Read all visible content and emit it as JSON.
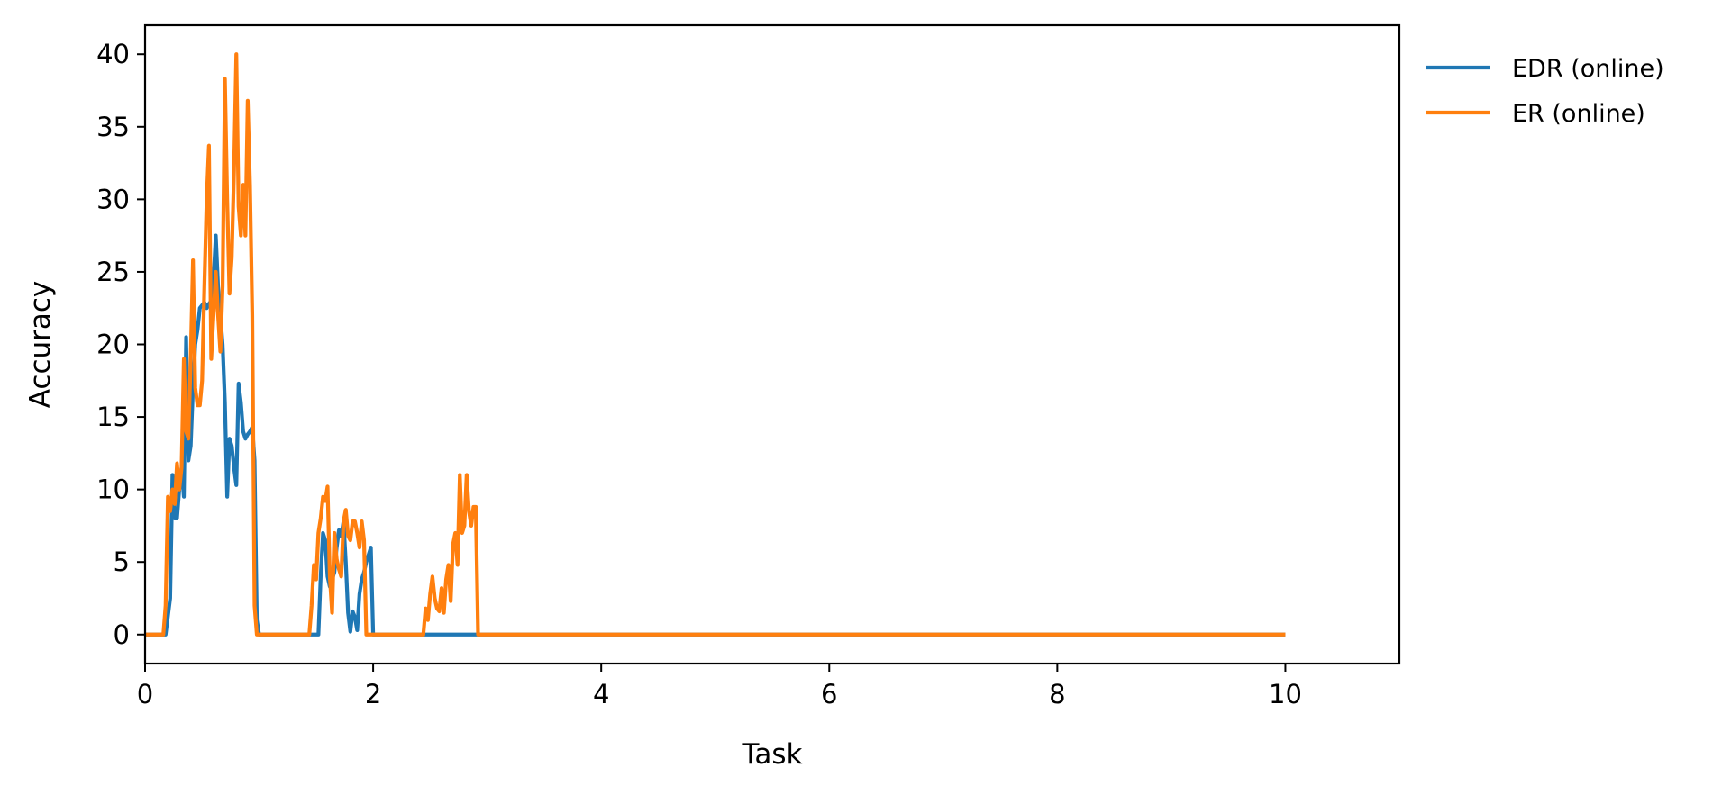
{
  "chart_data": {
    "type": "line",
    "title": "",
    "xlabel": "Task",
    "ylabel": "Accuracy",
    "xlim": [
      0,
      11
    ],
    "ylim": [
      -2,
      42
    ],
    "xticks": [
      0,
      2,
      4,
      6,
      8,
      10
    ],
    "yticks": [
      0,
      5,
      10,
      15,
      20,
      25,
      30,
      35,
      40
    ],
    "grid": false,
    "legend_position": "outside-top-right",
    "series": [
      {
        "name": "EDR (online)",
        "color": "#1f77b4",
        "points": [
          [
            0.0,
            0
          ],
          [
            0.18,
            0
          ],
          [
            0.22,
            2.5
          ],
          [
            0.24,
            11
          ],
          [
            0.26,
            8
          ],
          [
            0.28,
            8
          ],
          [
            0.3,
            10
          ],
          [
            0.32,
            11.5
          ],
          [
            0.34,
            9.5
          ],
          [
            0.36,
            20.5
          ],
          [
            0.38,
            12
          ],
          [
            0.4,
            13
          ],
          [
            0.42,
            17
          ],
          [
            0.44,
            20
          ],
          [
            0.46,
            21
          ],
          [
            0.48,
            22.5
          ],
          [
            0.5,
            22.7
          ],
          [
            0.52,
            22.9
          ],
          [
            0.54,
            22.5
          ],
          [
            0.56,
            22.8
          ],
          [
            0.58,
            23
          ],
          [
            0.6,
            24.5
          ],
          [
            0.62,
            27.5
          ],
          [
            0.64,
            24
          ],
          [
            0.66,
            22
          ],
          [
            0.68,
            20
          ],
          [
            0.7,
            16
          ],
          [
            0.72,
            9.5
          ],
          [
            0.74,
            13.5
          ],
          [
            0.76,
            13
          ],
          [
            0.78,
            11.5
          ],
          [
            0.8,
            10.3
          ],
          [
            0.82,
            17.3
          ],
          [
            0.84,
            16
          ],
          [
            0.86,
            14
          ],
          [
            0.88,
            13.5
          ],
          [
            0.9,
            13.8
          ],
          [
            0.92,
            14
          ],
          [
            0.94,
            14.3
          ],
          [
            0.96,
            12
          ],
          [
            0.98,
            1
          ],
          [
            1.0,
            0
          ],
          [
            1.48,
            0
          ],
          [
            1.52,
            0
          ],
          [
            1.54,
            4
          ],
          [
            1.56,
            7
          ],
          [
            1.58,
            6.5
          ],
          [
            1.6,
            4
          ],
          [
            1.62,
            3.3
          ],
          [
            1.64,
            3.8
          ],
          [
            1.66,
            4.3
          ],
          [
            1.68,
            6
          ],
          [
            1.7,
            7.2
          ],
          [
            1.72,
            6.8
          ],
          [
            1.74,
            7.8
          ],
          [
            1.76,
            5
          ],
          [
            1.78,
            1.5
          ],
          [
            1.8,
            0.2
          ],
          [
            1.82,
            1.6
          ],
          [
            1.84,
            1.2
          ],
          [
            1.86,
            0.3
          ],
          [
            1.88,
            2.8
          ],
          [
            1.9,
            3.8
          ],
          [
            1.92,
            4.3
          ],
          [
            1.94,
            5
          ],
          [
            1.96,
            5.5
          ],
          [
            1.98,
            6
          ],
          [
            2.0,
            0
          ],
          [
            2.46,
            0
          ],
          [
            3.0,
            0
          ],
          [
            10.0,
            0
          ]
        ]
      },
      {
        "name": "ER (online)",
        "color": "#ff7f0e",
        "points": [
          [
            0.0,
            0
          ],
          [
            0.16,
            0
          ],
          [
            0.18,
            2
          ],
          [
            0.2,
            9.5
          ],
          [
            0.22,
            8.5
          ],
          [
            0.24,
            10
          ],
          [
            0.26,
            9
          ],
          [
            0.28,
            11.8
          ],
          [
            0.3,
            10
          ],
          [
            0.32,
            11.5
          ],
          [
            0.34,
            19
          ],
          [
            0.36,
            14
          ],
          [
            0.38,
            13.5
          ],
          [
            0.4,
            19
          ],
          [
            0.42,
            25.8
          ],
          [
            0.44,
            17
          ],
          [
            0.46,
            15.8
          ],
          [
            0.48,
            15.8
          ],
          [
            0.5,
            17.5
          ],
          [
            0.52,
            24
          ],
          [
            0.54,
            30
          ],
          [
            0.56,
            33.7
          ],
          [
            0.58,
            19
          ],
          [
            0.6,
            22
          ],
          [
            0.62,
            25
          ],
          [
            0.64,
            22
          ],
          [
            0.66,
            19.5
          ],
          [
            0.68,
            24
          ],
          [
            0.7,
            38.3
          ],
          [
            0.72,
            30
          ],
          [
            0.74,
            23.5
          ],
          [
            0.76,
            26
          ],
          [
            0.78,
            32
          ],
          [
            0.8,
            40
          ],
          [
            0.82,
            29.5
          ],
          [
            0.84,
            27.5
          ],
          [
            0.86,
            31
          ],
          [
            0.88,
            27.5
          ],
          [
            0.9,
            36.8
          ],
          [
            0.92,
            31
          ],
          [
            0.94,
            22
          ],
          [
            0.96,
            2
          ],
          [
            0.98,
            0
          ],
          [
            1.0,
            0
          ],
          [
            1.44,
            0
          ],
          [
            1.46,
            2
          ],
          [
            1.48,
            4.8
          ],
          [
            1.5,
            3.8
          ],
          [
            1.52,
            7
          ],
          [
            1.54,
            8
          ],
          [
            1.56,
            9.5
          ],
          [
            1.58,
            9.2
          ],
          [
            1.6,
            10.2
          ],
          [
            1.62,
            4
          ],
          [
            1.64,
            1.5
          ],
          [
            1.66,
            7
          ],
          [
            1.68,
            5.2
          ],
          [
            1.7,
            4.5
          ],
          [
            1.72,
            4
          ],
          [
            1.74,
            7.8
          ],
          [
            1.76,
            8.6
          ],
          [
            1.78,
            6.8
          ],
          [
            1.8,
            6.5
          ],
          [
            1.82,
            7.8
          ],
          [
            1.84,
            7.8
          ],
          [
            1.86,
            7
          ],
          [
            1.88,
            6
          ],
          [
            1.9,
            7.8
          ],
          [
            1.92,
            6.5
          ],
          [
            1.94,
            0
          ],
          [
            2.0,
            0
          ],
          [
            2.44,
            0
          ],
          [
            2.46,
            1.8
          ],
          [
            2.48,
            1
          ],
          [
            2.5,
            2.8
          ],
          [
            2.52,
            4
          ],
          [
            2.54,
            2.5
          ],
          [
            2.56,
            1.8
          ],
          [
            2.58,
            1.6
          ],
          [
            2.6,
            3.2
          ],
          [
            2.62,
            1.5
          ],
          [
            2.64,
            3.8
          ],
          [
            2.66,
            4.8
          ],
          [
            2.68,
            2.3
          ],
          [
            2.7,
            6.2
          ],
          [
            2.72,
            7
          ],
          [
            2.74,
            4.8
          ],
          [
            2.76,
            11
          ],
          [
            2.78,
            7
          ],
          [
            2.8,
            7.5
          ],
          [
            2.82,
            11
          ],
          [
            2.84,
            8.5
          ],
          [
            2.86,
            7.5
          ],
          [
            2.88,
            8.8
          ],
          [
            2.9,
            8.8
          ],
          [
            2.92,
            0
          ],
          [
            3.0,
            0
          ],
          [
            10.0,
            0
          ]
        ]
      }
    ]
  }
}
